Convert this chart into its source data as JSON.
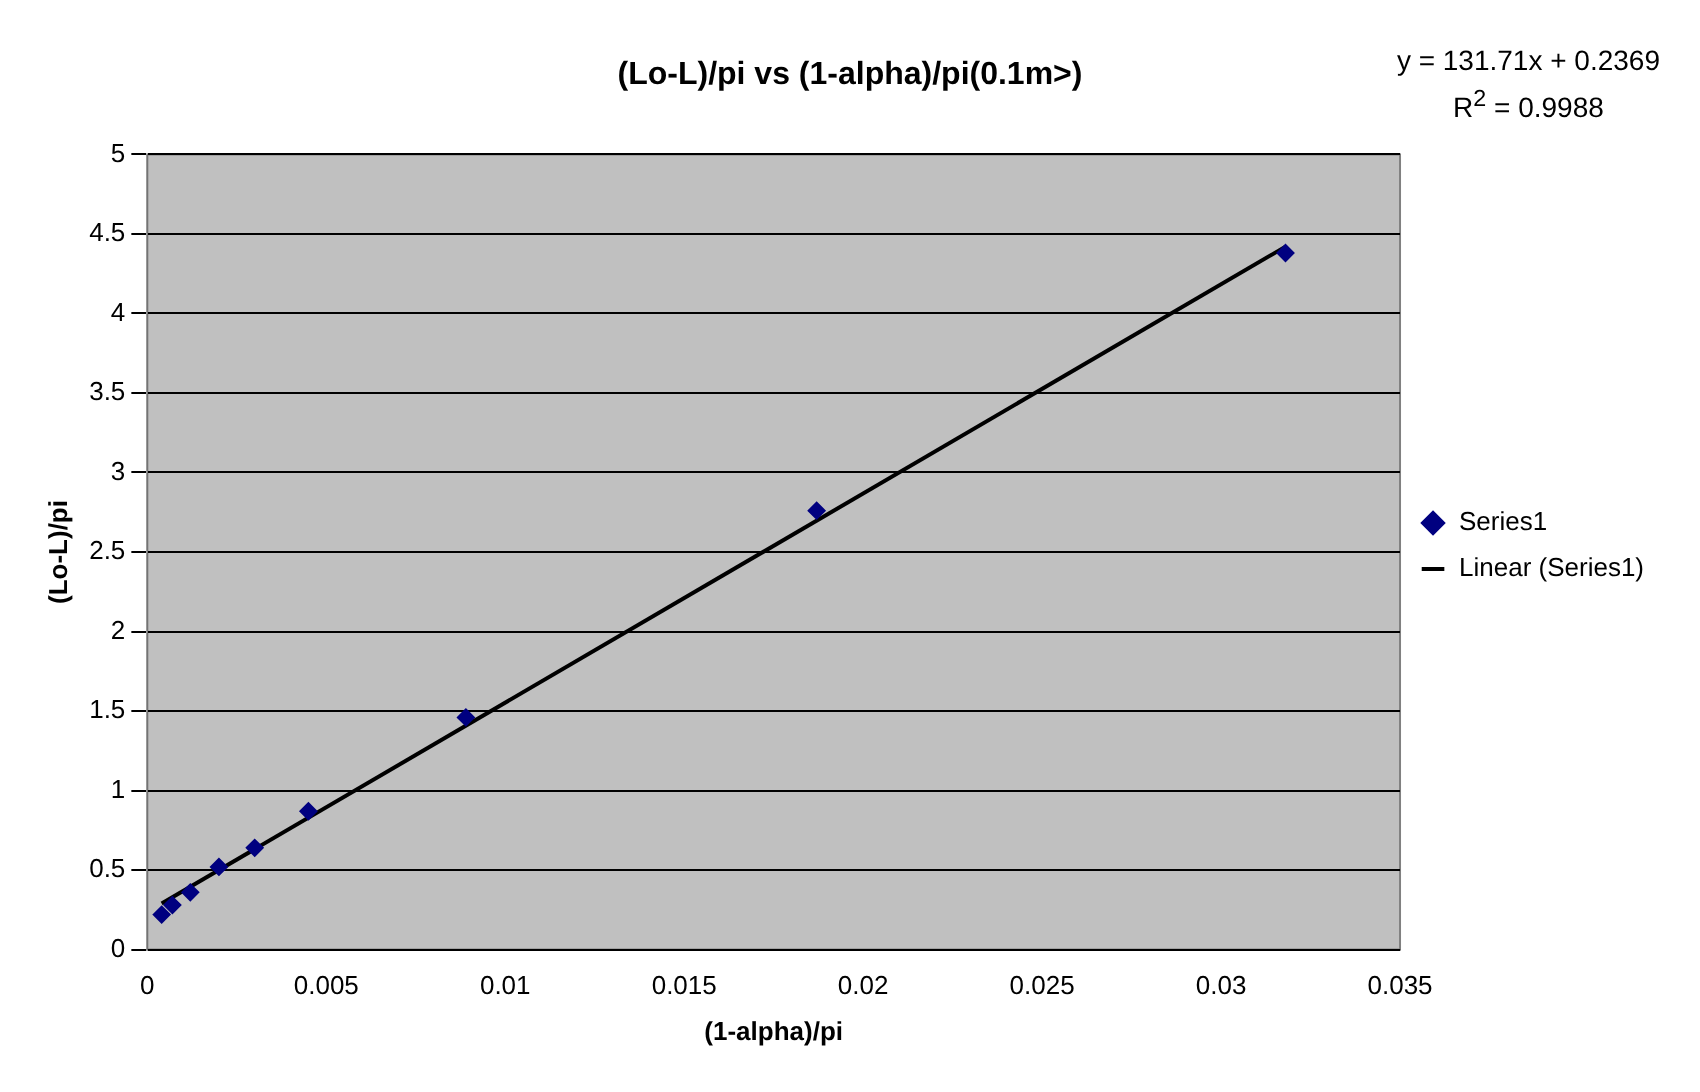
{
  "chart_data": {
    "type": "scatter",
    "title": "(Lo-L)/pi vs (1-alpha)/pi(0.1m>)",
    "xlabel": "(1-alpha)/pi",
    "ylabel": "(Lo-L)/pi",
    "annotations": [
      "y = 131.71x + 0.2369",
      "R$^{2}$ = 0.9988"
    ],
    "series": [
      {
        "name": "Series1",
        "color": "#000080",
        "marker": "diamond",
        "x": [
          0.0004,
          0.0007,
          0.0012,
          0.002,
          0.003,
          0.0045,
          0.0089,
          0.0187,
          0.0318
        ],
        "values": [
          0.22,
          0.28,
          0.36,
          0.52,
          0.64,
          0.87,
          1.46,
          2.76,
          4.38
        ]
      },
      {
        "name": "Linear (Series1)",
        "type": "line",
        "color": "#000000",
        "marker": "none",
        "x": [
          0.0004,
          0.0318
        ],
        "values": [
          0.29,
          4.42
        ]
      }
    ],
    "xlim": [
      0,
      0.035
    ],
    "xticks": [
      0,
      0.005,
      0.01,
      0.015,
      0.02,
      0.025,
      0.03,
      0.035
    ],
    "ylim": [
      0,
      5
    ],
    "yticks": [
      0,
      0.5,
      1,
      1.5,
      2,
      2.5,
      3,
      3.5,
      4,
      4.5,
      5
    ],
    "grid": "y",
    "legend": "right"
  }
}
